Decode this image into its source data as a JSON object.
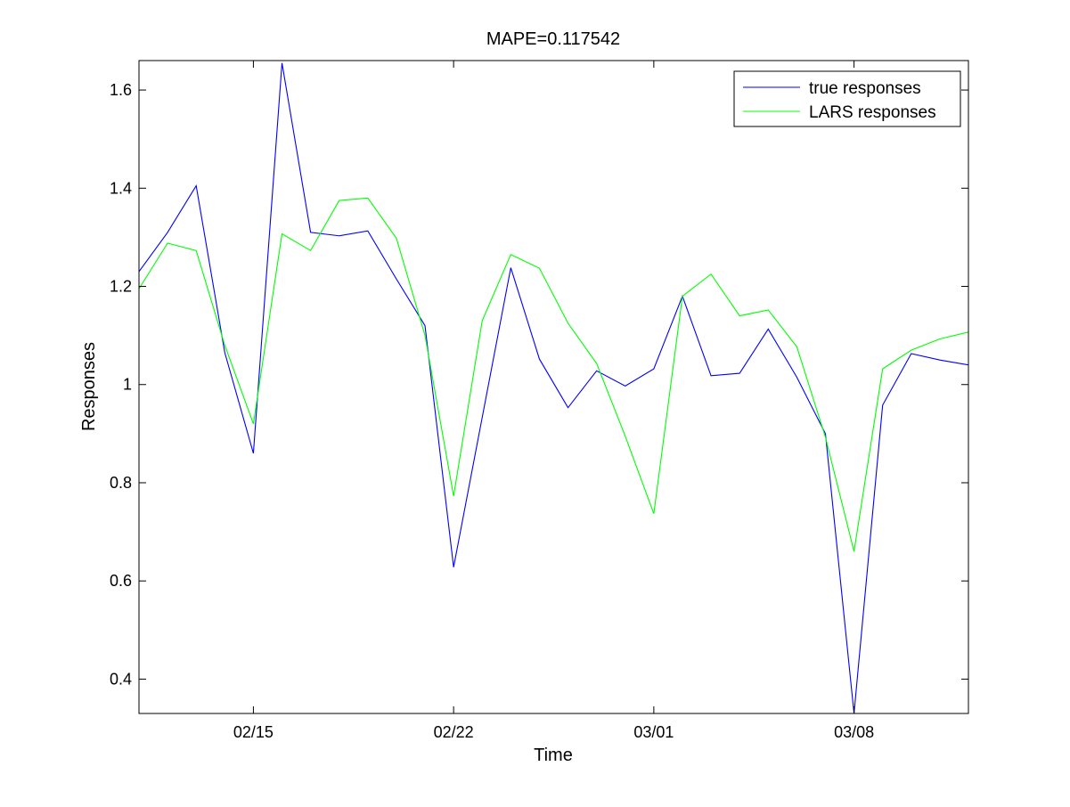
{
  "chart_data": {
    "type": "line",
    "title": "MAPE=0.117542",
    "xlabel": "Time",
    "ylabel": "Responses",
    "x_range": [
      "02/11",
      "03/12"
    ],
    "ylim": [
      0.33,
      1.66
    ],
    "x_ticks": [
      {
        "date": "02/15",
        "label": "02/15"
      },
      {
        "date": "02/22",
        "label": "02/22"
      },
      {
        "date": "03/01",
        "label": "03/01"
      },
      {
        "date": "03/08",
        "label": "03/08"
      }
    ],
    "y_ticks": [
      {
        "value": 0.4,
        "label": "0.4"
      },
      {
        "value": 0.6,
        "label": "0.6"
      },
      {
        "value": 0.8,
        "label": "0.8"
      },
      {
        "value": 1.0,
        "label": "1"
      },
      {
        "value": 1.2,
        "label": "1.2"
      },
      {
        "value": 1.4,
        "label": "1.4"
      },
      {
        "value": 1.6,
        "label": "1.6"
      }
    ],
    "grid": false,
    "legend_position": "top-right",
    "x": [
      "02/11",
      "02/12",
      "02/13",
      "02/14",
      "02/15",
      "02/16",
      "02/17",
      "02/18",
      "02/19",
      "02/20",
      "02/21",
      "02/22",
      "02/23",
      "02/24",
      "02/25",
      "02/26",
      "02/27",
      "02/28",
      "03/01",
      "03/02",
      "03/03",
      "03/04",
      "03/05",
      "03/06",
      "03/07",
      "03/08",
      "03/09",
      "03/10",
      "03/11",
      "03/12"
    ],
    "series": [
      {
        "name": "true responses",
        "color": "#0000ff",
        "values": [
          1.23,
          1.31,
          1.405,
          1.065,
          0.86,
          1.655,
          1.31,
          1.303,
          1.313,
          1.215,
          1.12,
          0.628,
          0.933,
          1.238,
          1.052,
          0.953,
          1.028,
          0.997,
          1.032,
          1.18,
          1.018,
          1.023,
          1.113,
          1.015,
          0.9,
          0.33,
          0.958,
          1.063,
          1.05,
          1.04
        ]
      },
      {
        "name": "LARS responses",
        "color": "#00ff00",
        "values": [
          1.195,
          1.288,
          1.273,
          1.08,
          0.92,
          1.307,
          1.273,
          1.375,
          1.38,
          1.298,
          1.1,
          0.773,
          1.13,
          1.265,
          1.237,
          1.125,
          1.043,
          0.895,
          0.737,
          1.18,
          1.225,
          1.14,
          1.152,
          1.077,
          0.893,
          0.66,
          1.032,
          1.07,
          1.093,
          1.107
        ]
      }
    ]
  }
}
